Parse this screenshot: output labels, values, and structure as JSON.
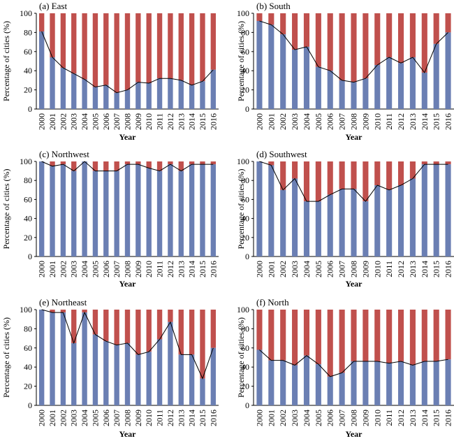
{
  "colors": {
    "primary": "#6b7fb3",
    "remainder": "#c0504d",
    "line": "#000000"
  },
  "chart_data": [
    {
      "type": "bar",
      "title": "(a) East",
      "xlabel": "Year",
      "ylabel": "Percentage of cities (%)",
      "ylim": [
        0,
        100
      ],
      "yticks": [
        "0",
        "20",
        "40",
        "60",
        "80",
        "100"
      ],
      "categories": [
        "2000",
        "2001",
        "2002",
        "2003",
        "2004",
        "2005",
        "2006",
        "2007",
        "2008",
        "2009",
        "2010",
        "2011",
        "2012",
        "2013",
        "2014",
        "2015",
        "2016"
      ],
      "stacked": true,
      "values": [
        81,
        54,
        43,
        37,
        31,
        23,
        25,
        17,
        20,
        28,
        27,
        32,
        32,
        30,
        25,
        29,
        41
      ]
    },
    {
      "type": "bar",
      "title": "(b) South",
      "xlabel": "Year",
      "ylabel": "Percentage of cities (%)",
      "ylim": [
        0,
        100
      ],
      "yticks": [
        "0",
        "20",
        "40",
        "60",
        "80",
        "100"
      ],
      "categories": [
        "2000",
        "2001",
        "2002",
        "2003",
        "2004",
        "2005",
        "2006",
        "2007",
        "2008",
        "2009",
        "2010",
        "2011",
        "2012",
        "2013",
        "2014",
        "2015",
        "2016"
      ],
      "stacked": true,
      "values": [
        92,
        88,
        78,
        62,
        65,
        44,
        40,
        30,
        28,
        32,
        46,
        54,
        48,
        54,
        38,
        68,
        80
      ]
    },
    {
      "type": "bar",
      "title": "(c) Northwest",
      "xlabel": "Year",
      "ylabel": "Percentage of cities (%)",
      "ylim": [
        0,
        100
      ],
      "yticks": [
        "0",
        "20",
        "40",
        "60",
        "80",
        "100"
      ],
      "categories": [
        "2000",
        "2001",
        "2002",
        "2003",
        "2004",
        "2005",
        "2006",
        "2007",
        "2008",
        "2009",
        "2010",
        "2011",
        "2012",
        "2013",
        "2014",
        "2015",
        "2016"
      ],
      "stacked": true,
      "values": [
        100,
        95,
        97,
        90,
        100,
        90,
        90,
        90,
        97,
        97,
        93,
        90,
        97,
        90,
        97,
        97,
        97
      ]
    },
    {
      "type": "bar",
      "title": "(d) Southwest",
      "xlabel": "Year",
      "ylabel": "Percentage of cities (%)",
      "ylim": [
        0,
        100
      ],
      "yticks": [
        "0",
        "20",
        "40",
        "60",
        "80",
        "100"
      ],
      "categories": [
        "2000",
        "2001",
        "2002",
        "2003",
        "2004",
        "2005",
        "2006",
        "2007",
        "2008",
        "2009",
        "2010",
        "2011",
        "2012",
        "2013",
        "2014",
        "2015",
        "2016"
      ],
      "stacked": true,
      "values": [
        100,
        96,
        70,
        82,
        58,
        58,
        65,
        71,
        71,
        58,
        75,
        70,
        75,
        82,
        97,
        97,
        97
      ]
    },
    {
      "type": "bar",
      "title": "(e) Northeast",
      "xlabel": "Year",
      "ylabel": "Percentage of cities (%)",
      "ylim": [
        0,
        100
      ],
      "yticks": [
        "0",
        "20",
        "40",
        "60",
        "80",
        "100"
      ],
      "categories": [
        "2000",
        "2001",
        "2002",
        "2003",
        "2004",
        "2005",
        "2006",
        "2007",
        "2008",
        "2009",
        "2010",
        "2011",
        "2012",
        "2013",
        "2014",
        "2015",
        "2016"
      ],
      "stacked": true,
      "values": [
        100,
        97,
        97,
        65,
        97,
        74,
        67,
        63,
        65,
        53,
        56,
        69,
        87,
        53,
        53,
        28,
        60
      ]
    },
    {
      "type": "bar",
      "title": "(f) North",
      "xlabel": "Year",
      "ylabel": "Percentage of cities (%)",
      "ylim": [
        0,
        100
      ],
      "yticks": [
        "0",
        "20",
        "40",
        "60",
        "80",
        "100"
      ],
      "categories": [
        "2000",
        "2001",
        "2002",
        "2003",
        "2004",
        "2005",
        "2006",
        "2007",
        "2008",
        "2009",
        "2010",
        "2011",
        "2012",
        "2013",
        "2014",
        "2015",
        "2016"
      ],
      "stacked": true,
      "values": [
        58,
        47,
        47,
        42,
        52,
        43,
        30,
        34,
        46,
        46,
        46,
        44,
        46,
        42,
        46,
        46,
        48
      ]
    }
  ]
}
